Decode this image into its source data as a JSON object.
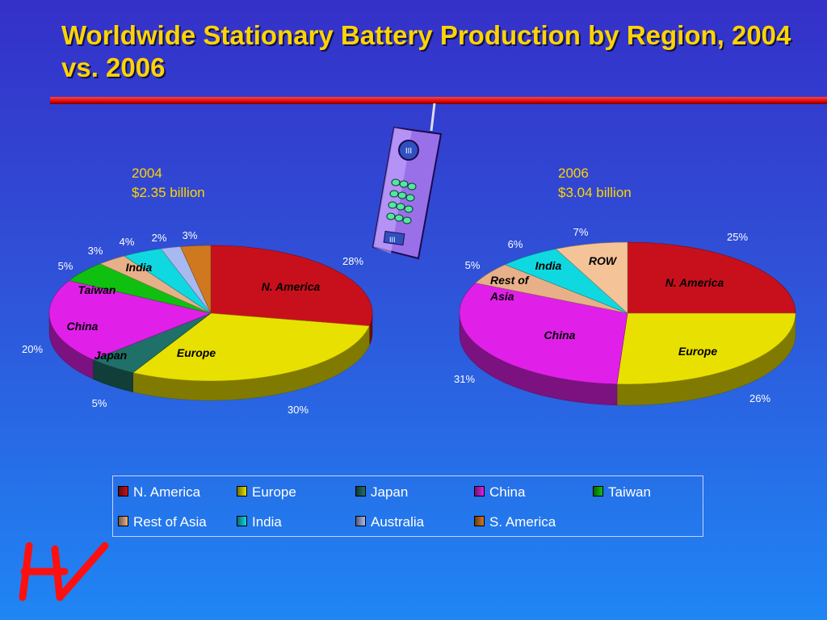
{
  "slide": {
    "title": "Worldwide Stationary Battery Production by Region, 2004 vs. 2006"
  },
  "colors": {
    "N. America": "#c8101c",
    "Europe": "#e8e000",
    "Japan": "#1f7068",
    "China": "#e020e8",
    "Taiwan": "#10c010",
    "Rest of Asia": "#e8b088",
    "India": "#10d8e0",
    "Australia": "#a8b8f0",
    "S. America": "#d07820",
    "ROW": "#f4c498"
  },
  "legend": {
    "items": [
      "N. America",
      "Europe",
      "Japan",
      "China",
      "Taiwan",
      "Rest of Asia",
      "India",
      "Australia",
      "S. America"
    ]
  },
  "chart_data": [
    {
      "type": "pie",
      "year": "2004",
      "total": "$2.35 billion",
      "slices": [
        {
          "name": "N. America",
          "label": "N. America",
          "value": 28,
          "pct": "28%"
        },
        {
          "name": "Europe",
          "label": "Europe",
          "value": 30,
          "pct": "30%"
        },
        {
          "name": "Japan",
          "label": "Japan",
          "value": 5,
          "pct": "5%"
        },
        {
          "name": "China",
          "label": "China",
          "value": 20,
          "pct": "20%"
        },
        {
          "name": "Taiwan",
          "label": "Taiwan",
          "value": 5,
          "pct": "5%"
        },
        {
          "name": "Rest of Asia",
          "label": "",
          "value": 3,
          "pct": "3%"
        },
        {
          "name": "India",
          "label": "India",
          "value": 4,
          "pct": "4%"
        },
        {
          "name": "Australia",
          "label": "",
          "value": 2,
          "pct": "2%"
        },
        {
          "name": "S. America",
          "label": "",
          "value": 3,
          "pct": "3%"
        }
      ]
    },
    {
      "type": "pie",
      "year": "2006",
      "total": "$3.04 billion",
      "slices": [
        {
          "name": "N. America",
          "label": "N. America",
          "value": 25,
          "pct": "25%"
        },
        {
          "name": "Europe",
          "label": "Europe",
          "value": 26,
          "pct": "26%"
        },
        {
          "name": "China",
          "label": "China",
          "value": 31,
          "pct": "31%"
        },
        {
          "name": "Rest of Asia",
          "label": "Rest of Asia",
          "value": 5,
          "pct": "5%"
        },
        {
          "name": "India",
          "label": "India",
          "value": 6,
          "pct": "6%"
        },
        {
          "name": "ROW",
          "label": "ROW",
          "value": 7,
          "pct": "7%"
        }
      ]
    }
  ]
}
